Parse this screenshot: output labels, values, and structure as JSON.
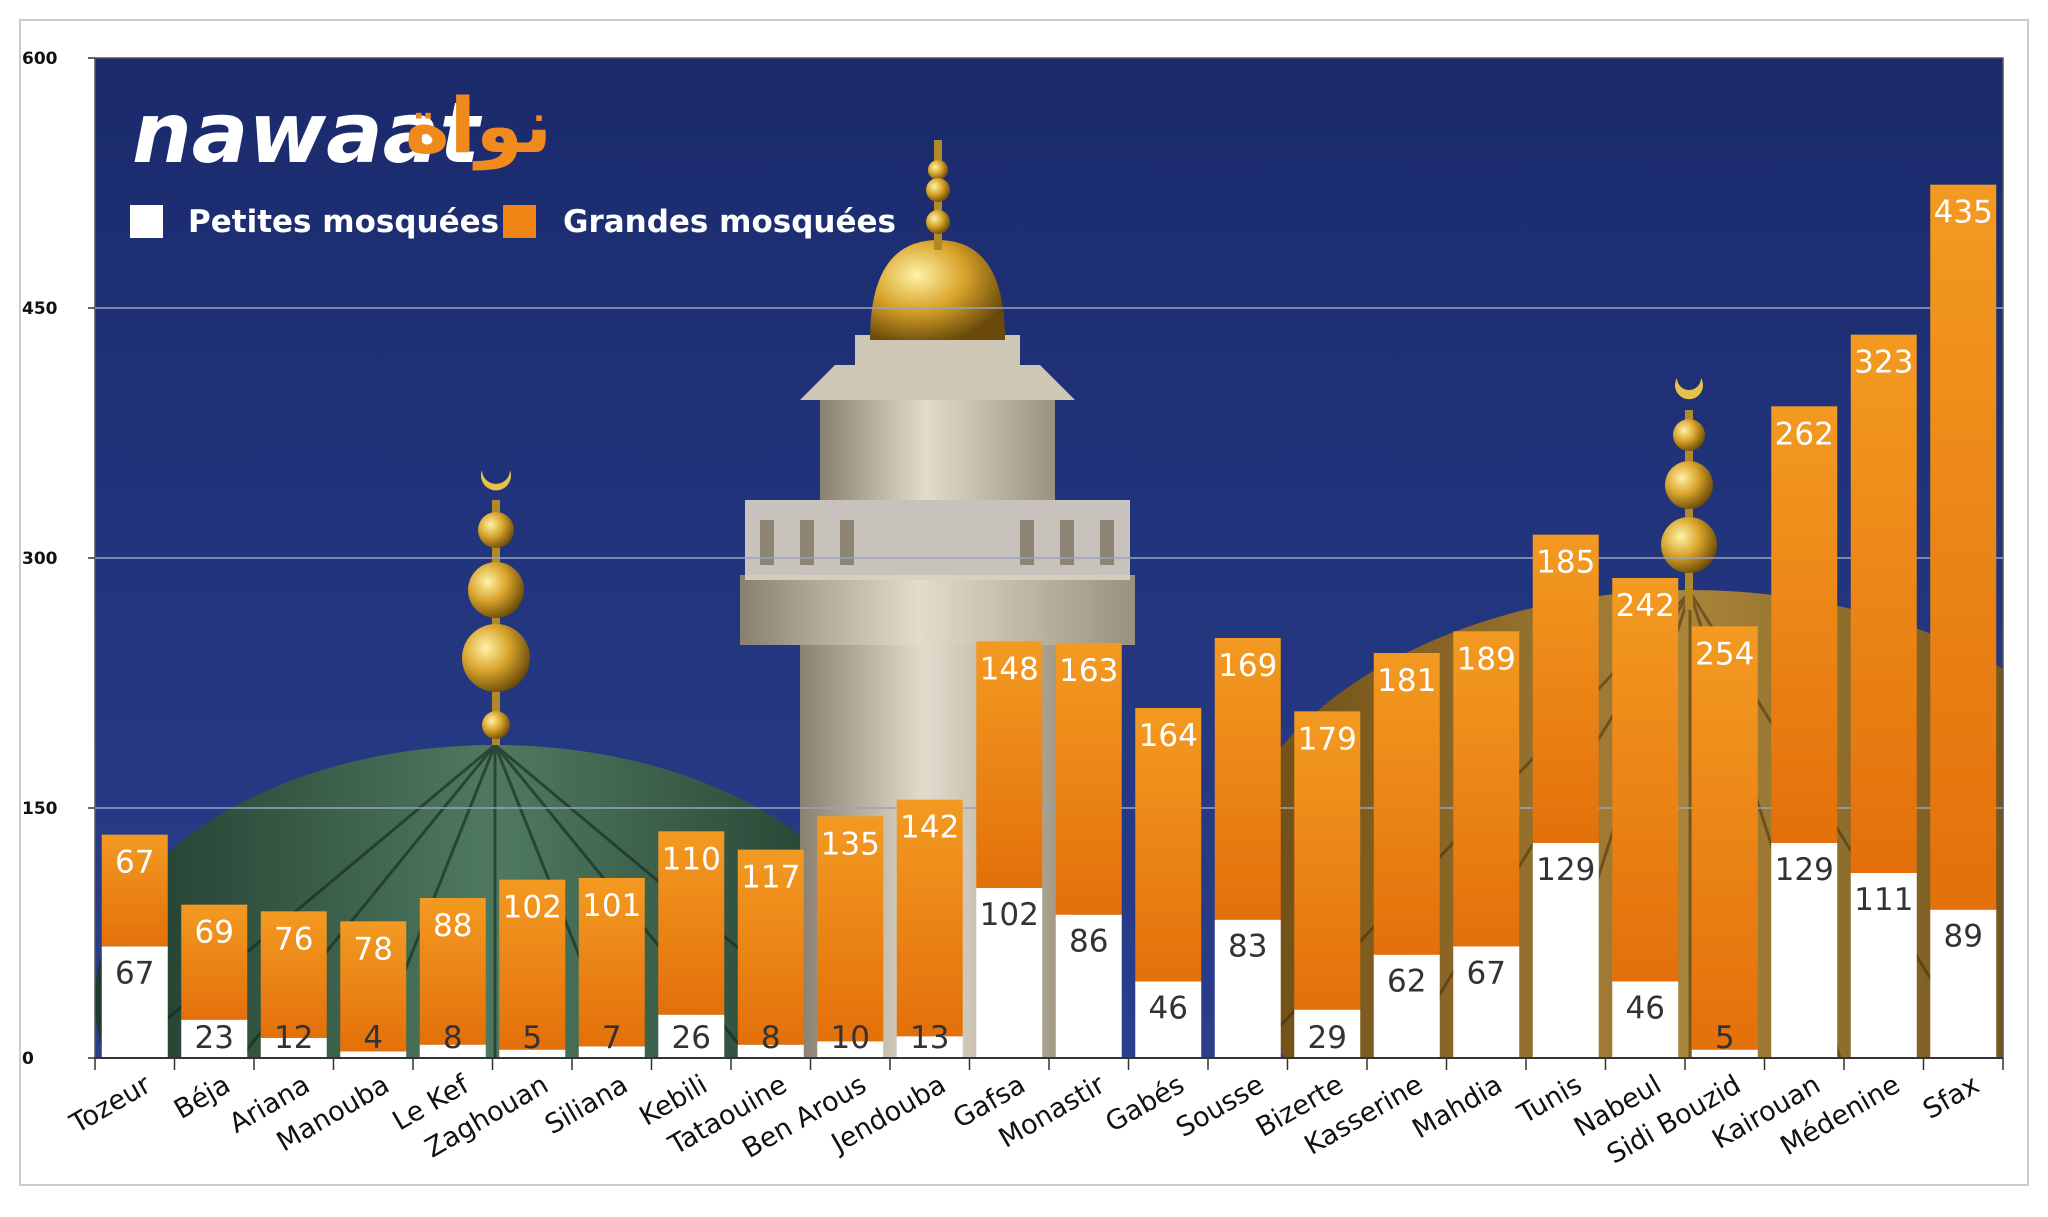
{
  "logo": {
    "latin": "nawaat",
    "arabic": "نواة"
  },
  "legend": [
    {
      "label": "Petites mosquées",
      "color": "#ffffff"
    },
    {
      "label": "Grandes mosquées",
      "color": "#ef8414"
    }
  ],
  "colors": {
    "background": "#1c2e73",
    "grid": "#9aa2c2",
    "small": "#ffffff",
    "large": "#ef8414"
  },
  "chart_data": {
    "type": "bar",
    "stacked": true,
    "categories": [
      "Tozeur",
      "Béja",
      "Ariana",
      "Manouba",
      "Le Kef",
      "Zaghouan",
      "Siliana",
      "Kebili",
      "Tataouine",
      "Ben Arous",
      "Jendouba",
      "Gafsa",
      "Monastir",
      "Gabés",
      "Sousse",
      "Bizerte",
      "Kasserine",
      "Mahdia",
      "Tunis",
      "Nabeul",
      "Sidi Bouzid",
      "Kairouan",
      "Médenine",
      "Sfax"
    ],
    "series": [
      {
        "name": "Petites mosquées",
        "values": [
          67,
          23,
          12,
          4,
          8,
          5,
          7,
          26,
          8,
          10,
          13,
          102,
          86,
          46,
          83,
          29,
          62,
          67,
          129,
          46,
          5,
          129,
          111,
          89
        ]
      },
      {
        "name": "Grandes mosquées",
        "values": [
          67,
          69,
          76,
          78,
          88,
          102,
          101,
          110,
          117,
          135,
          142,
          148,
          163,
          164,
          169,
          179,
          181,
          189,
          185,
          242,
          254,
          262,
          323,
          435
        ]
      }
    ],
    "ylim": [
      0,
      600
    ],
    "yticks": [
      0,
      150,
      300,
      450,
      600
    ],
    "grid": true,
    "legend_position": "top-left"
  }
}
